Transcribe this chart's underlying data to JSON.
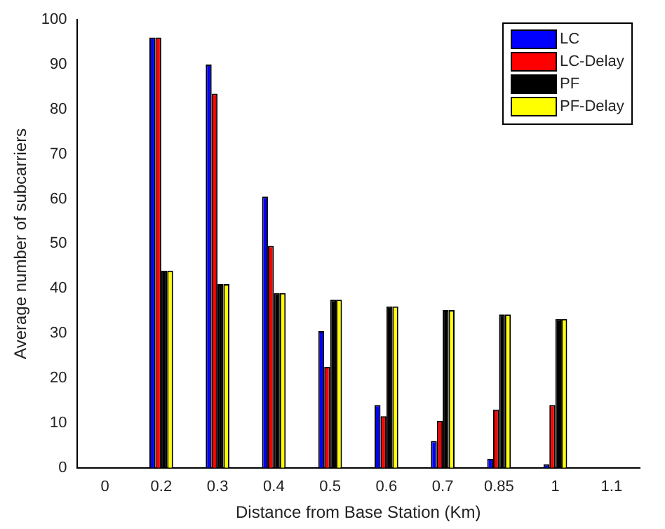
{
  "chart_data": {
    "type": "bar",
    "xlabel": "Distance from Base Station (Km)",
    "ylabel": "Average number of subcarriers",
    "categories": [
      "0",
      "0.2",
      "0.3",
      "0.4",
      "0.5",
      "0.6",
      "0.7",
      "0.85",
      "1",
      "1.1"
    ],
    "series": [
      {
        "name": "LC",
        "color": "#0000ff",
        "values": [
          null,
          96,
          90,
          60.5,
          30.5,
          14,
          6,
          2,
          0.8,
          null
        ]
      },
      {
        "name": "LC-Delay",
        "color": "#ff0000",
        "values": [
          null,
          96,
          83.5,
          49.5,
          22.5,
          11.5,
          10.5,
          13,
          14,
          null
        ]
      },
      {
        "name": "PF",
        "color": "#000000",
        "values": [
          null,
          44,
          41,
          39,
          37.5,
          36,
          35.2,
          34.2,
          33.2,
          null
        ]
      },
      {
        "name": "PF-Delay",
        "color": "#ffff00",
        "values": [
          null,
          44,
          41,
          39,
          37.5,
          36,
          35.2,
          34.2,
          33.2,
          null
        ]
      }
    ],
    "ylim": [
      0,
      100
    ],
    "yticks": [
      0,
      10,
      20,
      30,
      40,
      50,
      60,
      70,
      80,
      90,
      100
    ],
    "grid": false,
    "legend": "top right"
  }
}
